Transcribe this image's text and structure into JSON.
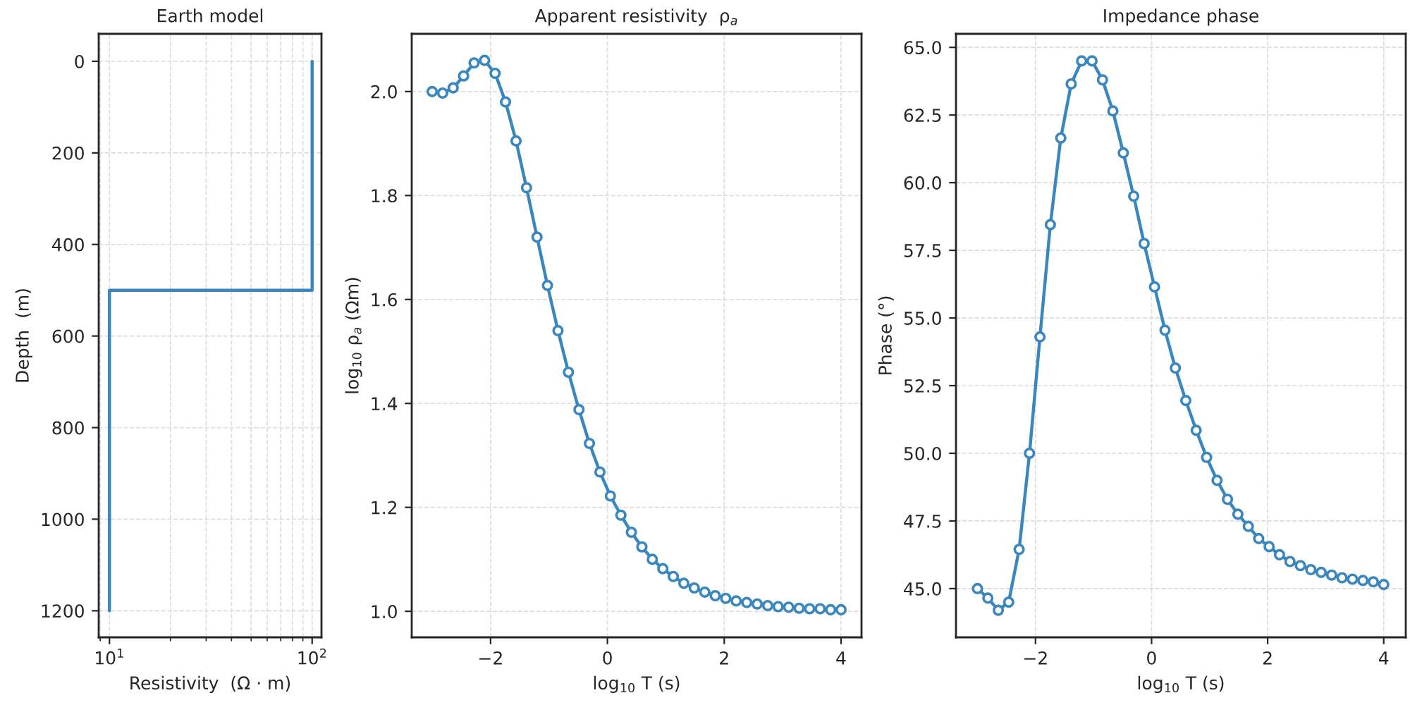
{
  "chart_data": [
    {
      "type": "line",
      "title": "Earth model",
      "xlabel": "Resistivity  (Ω · m)",
      "ylabel": "Depth  (m)",
      "log": "x",
      "grid": true,
      "marker": "none",
      "line_style": "solid",
      "xlim": [
        8.85,
        111.2
      ],
      "ylim": [
        1258,
        -60
      ],
      "xticks": [
        {
          "value": 10,
          "label": "10$^{1}$"
        },
        {
          "value": 100,
          "label": "10$^{2}$"
        }
      ],
      "yticks": [
        0,
        200,
        400,
        600,
        800,
        1000,
        1200
      ],
      "series": [
        {
          "color": "#3a87c0",
          "x": [
            100,
            100,
            10,
            10
          ],
          "values": [
            0,
            500,
            500,
            1200
          ]
        }
      ]
    },
    {
      "type": "line",
      "title": "Apparent resistivity  ρ$_{a}$",
      "xlabel": "log$_{10}$ T (s)",
      "ylabel": "log$_{10}$ ρ$_{a}$ (Ωm)",
      "grid": true,
      "marker": "circle",
      "line_style": "solid",
      "xlim": [
        -3.35,
        4.35
      ],
      "ylim": [
        0.95,
        2.111
      ],
      "xticks": [
        {
          "value": -2,
          "label": "−2"
        },
        0,
        2,
        4
      ],
      "yticks": [
        {
          "value": 1.0,
          "label": "1.0"
        },
        1.2,
        1.4,
        1.6,
        1.8,
        {
          "value": 2.0,
          "label": "2.0"
        }
      ],
      "series": [
        {
          "color": "#3a87c0",
          "x": [
            -3.0,
            -2.821,
            -2.641,
            -2.462,
            -2.282,
            -2.103,
            -1.923,
            -1.744,
            -1.564,
            -1.385,
            -1.205,
            -1.026,
            -0.846,
            -0.667,
            -0.487,
            -0.308,
            -0.128,
            0.051,
            0.231,
            0.41,
            0.59,
            0.769,
            0.949,
            1.128,
            1.308,
            1.487,
            1.667,
            1.846,
            2.026,
            2.205,
            2.385,
            2.564,
            2.744,
            2.923,
            3.103,
            3.282,
            3.462,
            3.641,
            3.821,
            4.0
          ],
          "values": [
            2.0,
            1.997,
            2.007,
            2.03,
            2.055,
            2.06,
            2.035,
            1.98,
            1.905,
            1.815,
            1.72,
            1.627,
            1.54,
            1.46,
            1.388,
            1.323,
            1.268,
            1.222,
            1.185,
            1.152,
            1.124,
            1.1,
            1.082,
            1.067,
            1.054,
            1.045,
            1.037,
            1.03,
            1.025,
            1.02,
            1.017,
            1.014,
            1.011,
            1.009,
            1.008,
            1.006,
            1.005,
            1.005,
            1.003,
            1.003
          ]
        }
      ]
    },
    {
      "type": "line",
      "title": "Impedance phase",
      "xlabel": "log$_{10}$ T (s)",
      "ylabel": "Phase (°)",
      "grid": true,
      "marker": "circle",
      "line_style": "solid",
      "xlim": [
        -3.37,
        4.38
      ],
      "ylim": [
        43.2,
        65.5
      ],
      "xticks": [
        {
          "value": -2,
          "label": "−2"
        },
        0,
        2,
        4
      ],
      "yticks": [
        {
          "value": 45,
          "label": "45.0"
        },
        47.5,
        {
          "value": 50,
          "label": "50.0"
        },
        52.5,
        {
          "value": 55,
          "label": "55.0"
        },
        57.5,
        {
          "value": 60,
          "label": "60.0"
        },
        62.5,
        {
          "value": 65,
          "label": "65.0"
        }
      ],
      "series": [
        {
          "color": "#3a87c0",
          "x": [
            -3.0,
            -2.821,
            -2.641,
            -2.462,
            -2.282,
            -2.103,
            -1.923,
            -1.744,
            -1.564,
            -1.385,
            -1.205,
            -1.026,
            -0.846,
            -0.667,
            -0.487,
            -0.308,
            -0.128,
            0.051,
            0.231,
            0.41,
            0.59,
            0.769,
            0.949,
            1.128,
            1.308,
            1.487,
            1.667,
            1.846,
            2.026,
            2.205,
            2.385,
            2.564,
            2.744,
            2.923,
            3.103,
            3.282,
            3.462,
            3.641,
            3.821,
            4.0
          ],
          "values": [
            45.0,
            44.65,
            44.2,
            44.5,
            46.45,
            50.0,
            54.3,
            58.45,
            61.65,
            63.65,
            64.5,
            64.5,
            63.8,
            62.65,
            61.1,
            59.5,
            57.75,
            56.15,
            54.55,
            53.15,
            51.95,
            50.85,
            49.85,
            49.0,
            48.3,
            47.75,
            47.3,
            46.85,
            46.55,
            46.25,
            46.0,
            45.85,
            45.7,
            45.6,
            45.5,
            45.4,
            45.35,
            45.3,
            45.25,
            45.15
          ]
        }
      ]
    }
  ]
}
